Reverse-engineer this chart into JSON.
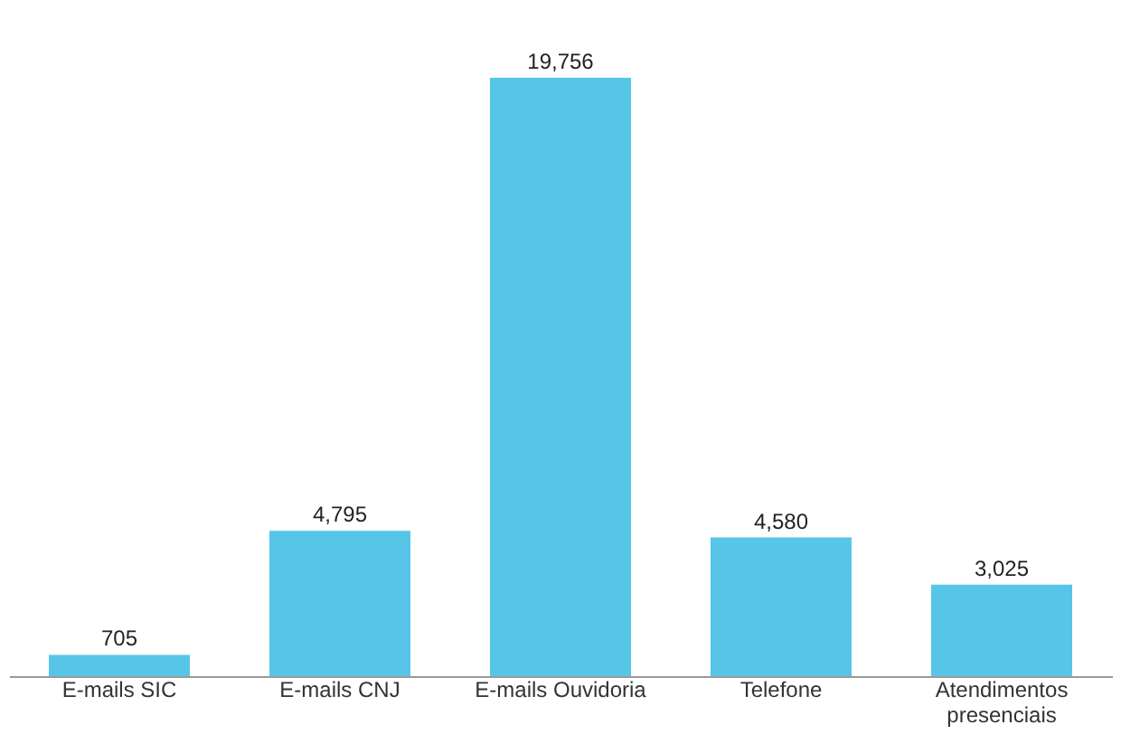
{
  "chart_data": {
    "type": "bar",
    "categories": [
      "E-mails SIC",
      "E-mails CNJ",
      "E-mails Ouvidoria",
      "Telefone",
      "Atendimentos presenciais"
    ],
    "values": [
      705,
      4795,
      19756,
      4580,
      3025
    ],
    "color": "#56c5e8",
    "value_labels": [
      "705",
      "4,795",
      "19,756",
      "4,580",
      "3,025"
    ],
    "grid": false,
    "tick_labels": "x"
  }
}
